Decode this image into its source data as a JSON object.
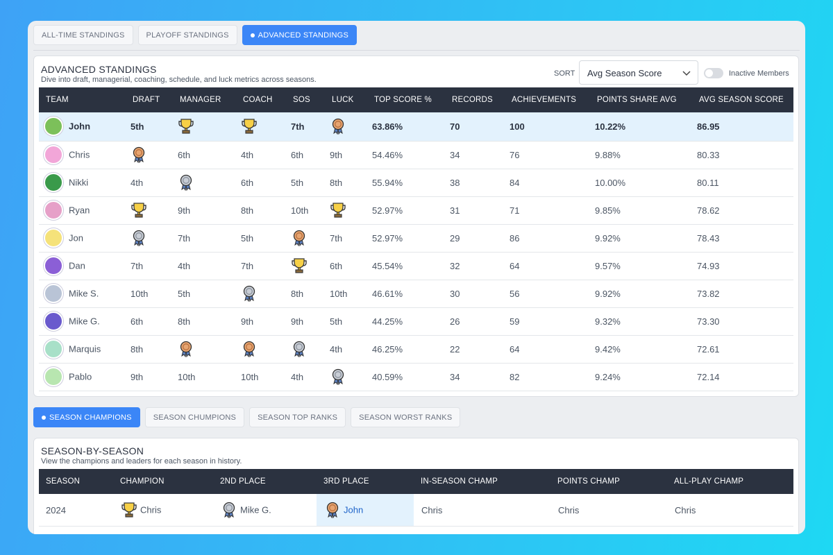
{
  "highlight_team": "John",
  "tabs": [
    "ALL-TIME STANDINGS",
    "PLAYOFF STANDINGS",
    "ADVANCED STANDINGS"
  ],
  "active_tab": 2,
  "standings": {
    "title": "ADVANCED STANDINGS",
    "subtitle": "Dive into draft, managerial, coaching, schedule, and luck metrics across seasons.",
    "sort_label": "SORT",
    "sort_value": "Avg Season Score",
    "toggle_label": "Inactive Members",
    "columns": [
      "TEAM",
      "DRAFT",
      "MANAGER",
      "COACH",
      "SOS",
      "LUCK",
      "TOP SCORE %",
      "RECORDS",
      "ACHIEVEMENTS",
      "POINTS SHARE AVG",
      "AVG SEASON SCORE"
    ],
    "rows": [
      {
        "team": "John",
        "cells": [
          "5th",
          1,
          1,
          "7th",
          3,
          "63.86%",
          "70",
          "100",
          "10.22%",
          "86.95"
        ]
      },
      {
        "team": "Chris",
        "cells": [
          3,
          "6th",
          "4th",
          "6th",
          "9th",
          "54.46%",
          "34",
          "76",
          "9.88%",
          "80.33"
        ]
      },
      {
        "team": "Nikki",
        "cells": [
          "4th",
          2,
          "6th",
          "5th",
          "8th",
          "55.94%",
          "38",
          "84",
          "10.00%",
          "80.11"
        ]
      },
      {
        "team": "Ryan",
        "cells": [
          1,
          "9th",
          "8th",
          "10th",
          1,
          "52.97%",
          "31",
          "71",
          "9.85%",
          "78.62"
        ]
      },
      {
        "team": "Jon",
        "cells": [
          2,
          "7th",
          "5th",
          3,
          "7th",
          "52.97%",
          "29",
          "86",
          "9.92%",
          "78.43"
        ]
      },
      {
        "team": "Dan",
        "cells": [
          "7th",
          "4th",
          "7th",
          1,
          "6th",
          "45.54%",
          "32",
          "64",
          "9.57%",
          "74.93"
        ]
      },
      {
        "team": "Mike S.",
        "cells": [
          "10th",
          "5th",
          2,
          "8th",
          "10th",
          "46.61%",
          "30",
          "56",
          "9.92%",
          "73.82"
        ]
      },
      {
        "team": "Mike G.",
        "cells": [
          "6th",
          "8th",
          "9th",
          "9th",
          "5th",
          "44.25%",
          "26",
          "59",
          "9.32%",
          "73.30"
        ]
      },
      {
        "team": "Marquis",
        "cells": [
          "8th",
          3,
          3,
          2,
          "4th",
          "46.25%",
          "22",
          "64",
          "9.42%",
          "72.61"
        ]
      },
      {
        "team": "Pablo",
        "cells": [
          "9th",
          "10th",
          "10th",
          "4th",
          2,
          "40.59%",
          "34",
          "82",
          "9.24%",
          "72.14"
        ]
      }
    ]
  },
  "season_tabs": [
    "SEASON CHAMPIONS",
    "SEASON CHUMPIONS",
    "SEASON TOP RANKS",
    "SEASON WORST RANKS"
  ],
  "active_season_tab": 0,
  "seasons": {
    "title": "SEASON-BY-SEASON",
    "subtitle": "View the champions and leaders for each season in history.",
    "columns": [
      "SEASON",
      "CHAMPION",
      "2ND PLACE",
      "3RD PLACE",
      "IN-SEASON CHAMP",
      "POINTS CHAMP",
      "ALL-PLAY CHAMP"
    ],
    "rows": [
      {
        "cells": [
          "2024",
          "Chris",
          "Mike G.",
          "John",
          "Chris",
          "Chris",
          "Chris"
        ]
      }
    ]
  }
}
